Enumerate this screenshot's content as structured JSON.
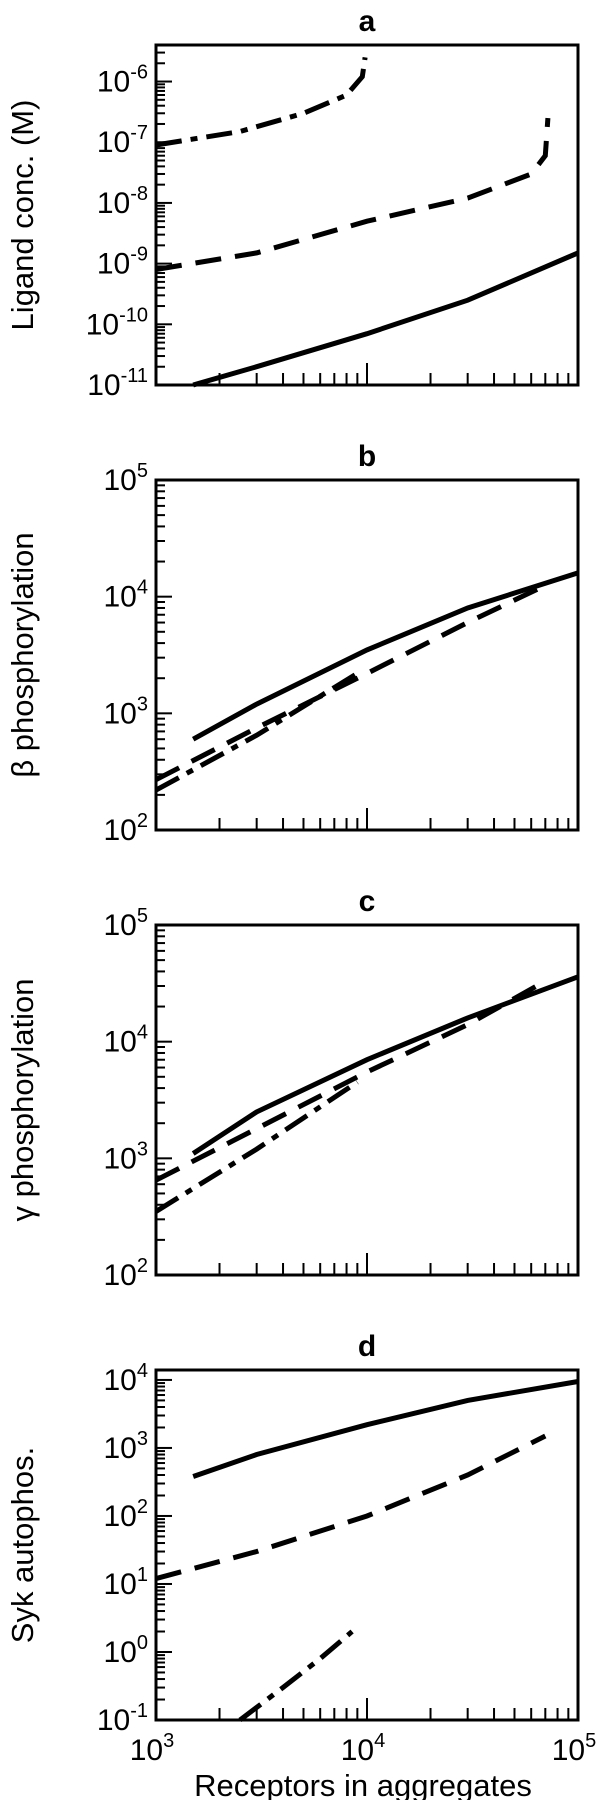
{
  "xlabel": "Receptors in aggregates",
  "chart_data": [
    {
      "panel": "a",
      "type": "line",
      "ylabel": "Ligand conc. (M)",
      "log_x": true,
      "log_y": true,
      "xlim": [
        1000,
        100000
      ],
      "ylim": [
        1e-11,
        4e-06
      ],
      "y_tick_exponents": [
        -11,
        -10,
        -9,
        -8,
        -7,
        -6
      ],
      "x_tick_exponents": [
        3,
        4,
        5
      ],
      "series": [
        {
          "style": "solid",
          "x": [
            1500,
            3000,
            10000,
            30000,
            100000
          ],
          "y": [
            1e-11,
            2e-11,
            7e-11,
            2.5e-10,
            1.5e-09
          ]
        },
        {
          "style": "dashed",
          "x": [
            1000,
            3000,
            10000,
            30000,
            60000,
            70000,
            72000
          ],
          "y": [
            8e-10,
            1.5e-09,
            5e-09,
            1.2e-08,
            3e-08,
            6e-08,
            2.5e-07
          ]
        },
        {
          "style": "dashdot",
          "x": [
            1000,
            2500,
            5000,
            8000,
            9500,
            9800
          ],
          "y": [
            9e-08,
            1.5e-07,
            3e-07,
            6e-07,
            1.2e-06,
            2.5e-06
          ]
        }
      ]
    },
    {
      "panel": "b",
      "type": "line",
      "ylabel": "β phosphorylation",
      "log_x": true,
      "log_y": true,
      "xlim": [
        1000,
        100000
      ],
      "ylim": [
        100,
        100000
      ],
      "y_tick_exponents": [
        2,
        3,
        4,
        5
      ],
      "x_tick_exponents": [
        3,
        4,
        5
      ],
      "series": [
        {
          "style": "solid",
          "x": [
            1500,
            3000,
            10000,
            30000,
            100000
          ],
          "y": [
            600,
            1200,
            3500,
            8000,
            16000
          ]
        },
        {
          "style": "dashed",
          "x": [
            1000,
            3000,
            10000,
            30000,
            70000
          ],
          "y": [
            270,
            750,
            2200,
            6000,
            12500
          ]
        },
        {
          "style": "dashdot",
          "x": [
            1000,
            3000,
            9000
          ],
          "y": [
            220,
            650,
            2200
          ]
        }
      ]
    },
    {
      "panel": "c",
      "type": "line",
      "ylabel": "γ phosphorylation",
      "log_x": true,
      "log_y": true,
      "xlim": [
        1000,
        100000
      ],
      "ylim": [
        100,
        100000
      ],
      "y_tick_exponents": [
        2,
        3,
        4,
        5
      ],
      "x_tick_exponents": [
        3,
        4,
        5
      ],
      "series": [
        {
          "style": "solid",
          "x": [
            1500,
            3000,
            10000,
            30000,
            100000
          ],
          "y": [
            1100,
            2500,
            7000,
            16000,
            36000
          ]
        },
        {
          "style": "dashed",
          "x": [
            1000,
            3000,
            10000,
            30000,
            70000
          ],
          "y": [
            650,
            1800,
            5500,
            14000,
            33000
          ]
        },
        {
          "style": "dashdot",
          "x": [
            1000,
            3000,
            9000
          ],
          "y": [
            350,
            1200,
            4500
          ]
        }
      ]
    },
    {
      "panel": "d",
      "type": "line",
      "ylabel": "Syk autophos.",
      "log_x": true,
      "log_y": true,
      "xlim": [
        1000,
        100000
      ],
      "ylim": [
        0.1,
        14000
      ],
      "y_tick_exponents": [
        -1,
        0,
        1,
        2,
        3,
        4
      ],
      "x_tick_exponents": [
        3,
        4,
        5
      ],
      "series": [
        {
          "style": "solid",
          "x": [
            1500,
            3000,
            10000,
            30000,
            100000
          ],
          "y": [
            380,
            800,
            2200,
            5000,
            9500
          ]
        },
        {
          "style": "dashed",
          "x": [
            1000,
            3000,
            10000,
            30000,
            70000
          ],
          "y": [
            12,
            30,
            100,
            400,
            1500
          ]
        },
        {
          "style": "dashdot",
          "x": [
            2500,
            4000,
            6000,
            8500
          ],
          "y": [
            0.1,
            0.3,
            0.8,
            2
          ]
        }
      ]
    }
  ]
}
